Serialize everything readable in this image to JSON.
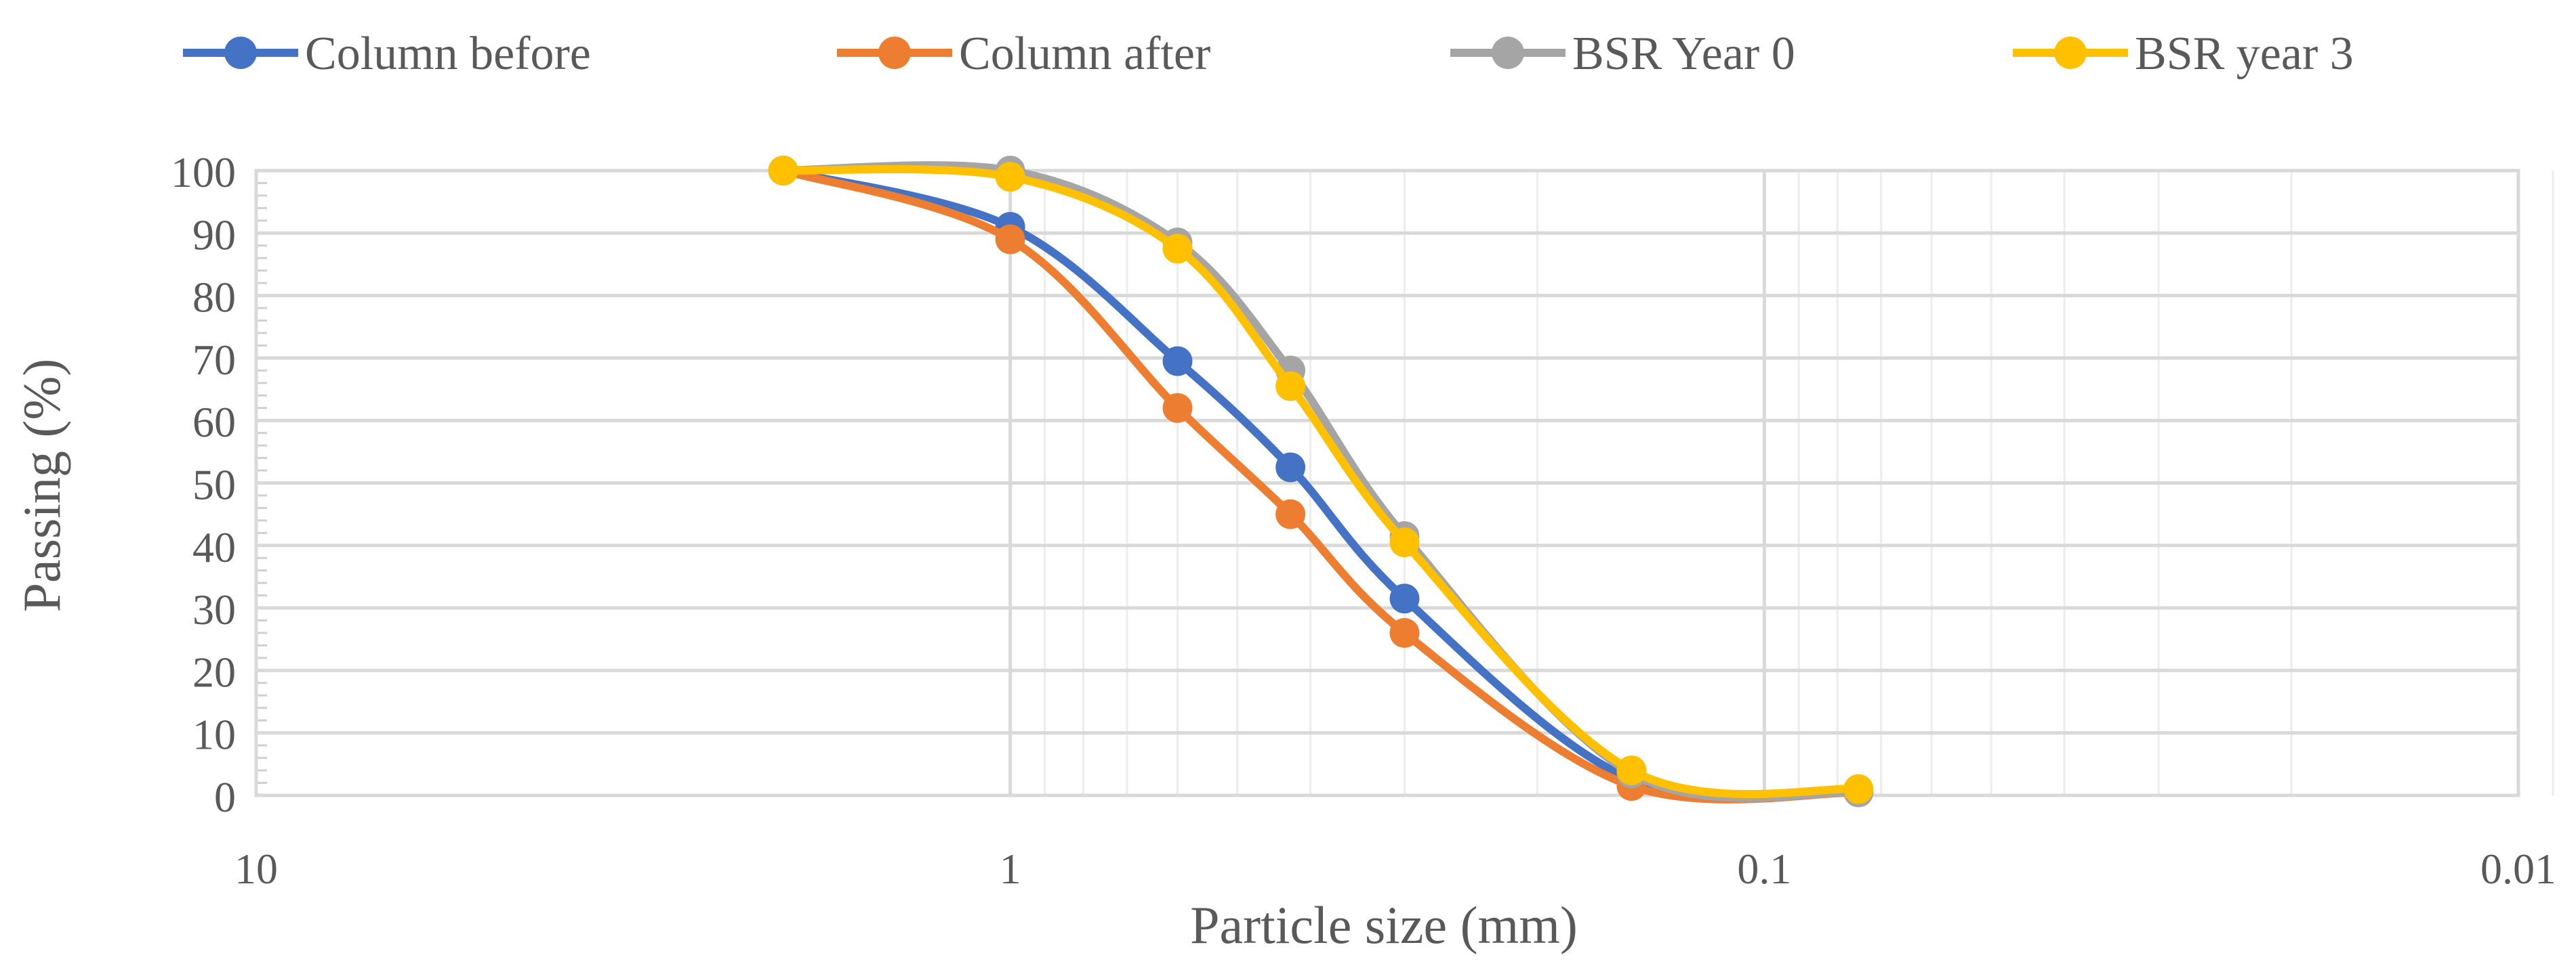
{
  "chart_data": {
    "type": "line",
    "x_scale": "log",
    "x_reversed": true,
    "xlim": [
      10,
      0.01
    ],
    "ylim": [
      0,
      100
    ],
    "xlabel": "Particle size (mm)",
    "ylabel": "Passing (%)",
    "grid": true,
    "legend_position": "top",
    "x_ticks": [
      {
        "value": 10,
        "label": "10"
      },
      {
        "value": 1,
        "label": "1"
      },
      {
        "value": 0.1,
        "label": "0.1"
      },
      {
        "value": 0.01,
        "label": "0.01"
      }
    ],
    "y_ticks": [
      0,
      10,
      20,
      30,
      40,
      50,
      60,
      70,
      80,
      90,
      100
    ],
    "series": [
      {
        "name": "Column before",
        "color": "#4472C4",
        "x": [
          2,
          1,
          0.6,
          0.425,
          0.3,
          0.15,
          0.075
        ],
        "y": [
          100,
          91,
          69.5,
          52.5,
          31.5,
          2.5,
          0.5
        ]
      },
      {
        "name": "Column after",
        "color": "#ED7D31",
        "x": [
          2,
          1,
          0.6,
          0.425,
          0.3,
          0.15,
          0.075
        ],
        "y": [
          100,
          89,
          62,
          45,
          26,
          1.5,
          0.5
        ]
      },
      {
        "name": "BSR Year 0",
        "color": "#A5A5A5",
        "x": [
          2,
          1,
          0.6,
          0.425,
          0.3,
          0.15,
          0.075
        ],
        "y": [
          100,
          100,
          88.5,
          68,
          41.5,
          3.5,
          0.5
        ]
      },
      {
        "name": "BSR year 3",
        "color": "#FFC000",
        "x": [
          2,
          1,
          0.6,
          0.425,
          0.3,
          0.15,
          0.075
        ],
        "y": [
          100,
          99,
          87.5,
          65.5,
          40.5,
          4,
          1
        ]
      }
    ]
  }
}
